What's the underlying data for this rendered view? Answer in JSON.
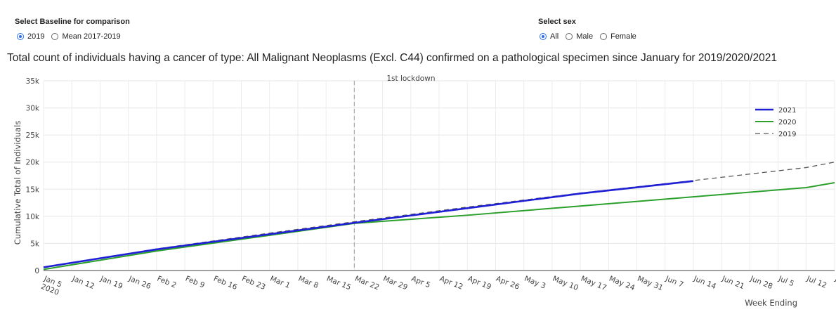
{
  "baseline_control": {
    "title": "Select Baseline for comparison",
    "options": [
      {
        "label": "2019",
        "selected": true
      },
      {
        "label": "Mean 2017-2019",
        "selected": false
      }
    ]
  },
  "sex_control": {
    "title": "Select sex",
    "options": [
      {
        "label": "All",
        "selected": true
      },
      {
        "label": "Male",
        "selected": false
      },
      {
        "label": "Female",
        "selected": false
      }
    ]
  },
  "chart_data": {
    "type": "line",
    "title": "Total count of individuals having a cancer of type: All Malignant Neoplasms (Excl. C44) confirmed on a pathological specimen since January for 2019/2020/2021",
    "xlabel": "Week Ending",
    "ylabel": "Cumulative Total of Individuals",
    "ylim": [
      0,
      35000
    ],
    "yticks": [
      0,
      5000,
      10000,
      15000,
      20000,
      25000,
      30000,
      35000
    ],
    "ytick_labels": [
      "0",
      "5k",
      "10k",
      "15k",
      "20k",
      "25k",
      "30k",
      "35k"
    ],
    "xtick_labels": [
      "Jan 5\n2020",
      "Jan 12",
      "Jan 19",
      "Jan 26",
      "Feb 2",
      "Feb 9",
      "Feb 16",
      "Feb 23",
      "Mar 1",
      "Mar 8",
      "Mar 15",
      "Mar 22",
      "Mar 29",
      "Apr 5",
      "Apr 12",
      "Apr 19",
      "Apr 26",
      "May 3",
      "May 10",
      "May 17",
      "May 24",
      "May 31",
      "Jun 7",
      "Jun 14",
      "Jun 21",
      "Jun 28",
      "Jul 5",
      "Jul 12",
      "Jul"
    ],
    "annotation": {
      "text": "1st lockdown",
      "x": "Mar 22"
    },
    "grid": true,
    "legend_position": "top-right",
    "series": [
      {
        "name": "2021",
        "color": "#1f1fd6",
        "dash": "solid",
        "x": [
          "Jan 5",
          "Feb 2",
          "Mar 1",
          "Mar 22",
          "Apr 19",
          "May 17",
          "Jun 14"
        ],
        "values": [
          600,
          3900,
          6700,
          8800,
          11500,
          14200,
          16500
        ]
      },
      {
        "name": "2020",
        "color": "#2ca02c",
        "dash": "solid",
        "x": [
          "Jan 5",
          "Feb 2",
          "Mar 1",
          "Mar 22",
          "Apr 19",
          "May 17",
          "Jun 14",
          "Jul 12",
          "Jul"
        ],
        "values": [
          200,
          3600,
          6500,
          8700,
          10200,
          11900,
          13600,
          15300,
          16200
        ]
      },
      {
        "name": "2019",
        "color": "#555555",
        "dash": "dashed",
        "x": [
          "Jan 5",
          "Feb 2",
          "Mar 1",
          "Mar 22",
          "Apr 19",
          "May 17",
          "Jun 14",
          "Jul 12",
          "Jul"
        ],
        "values": [
          500,
          4000,
          6900,
          9000,
          11700,
          14300,
          16600,
          19000,
          20000
        ]
      }
    ]
  }
}
